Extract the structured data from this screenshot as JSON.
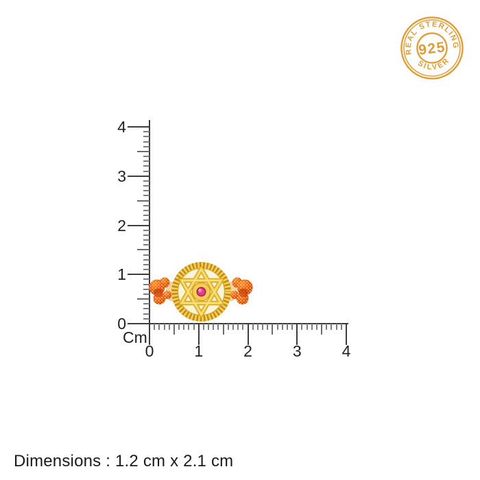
{
  "badge": {
    "top_text": "REAL STERLING",
    "center_text": "925",
    "bottom_text": "SILVER",
    "color": "#E29C33"
  },
  "ruler": {
    "unit": "Cm",
    "vertical_labels": [
      "0",
      "1",
      "2",
      "3",
      "4"
    ],
    "horizontal_labels": [
      "0",
      "1",
      "2",
      "3",
      "4"
    ],
    "cm_span": 4
  },
  "footer": {
    "dimensions_text": "Dimensions : 1.2 cm x 2.1 cm"
  },
  "product": {
    "colors": {
      "gold": "#F2C63E",
      "gold_dark": "#C8911D",
      "cream": "#FCF4D8",
      "thread_red": "#E94A15",
      "thread_dot": "#FFC640",
      "gem_pink": "#DD4487",
      "ruler_line": "#3a3a3a",
      "text": "#1b1b1b"
    }
  }
}
